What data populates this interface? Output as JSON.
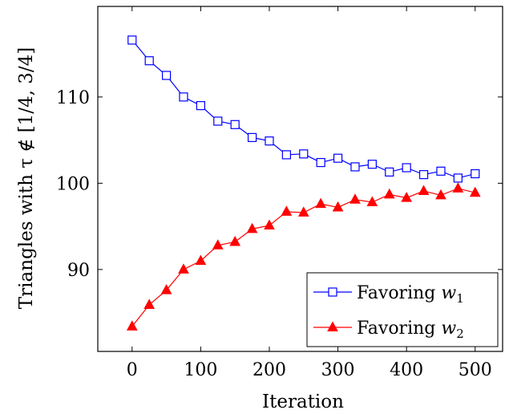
{
  "chart_data": {
    "type": "line",
    "xlabel": "Iteration",
    "ylabel": "Triangles with τ ∉ [1/4, 3/4]",
    "xlim": [
      -50,
      540
    ],
    "ylim": [
      80.5,
      120.5
    ],
    "xticks": [
      0,
      100,
      200,
      300,
      400,
      500
    ],
    "yticks": [
      90,
      100,
      110
    ],
    "grid": false,
    "legend_position": "bottom-right",
    "x": [
      0,
      25,
      50,
      75,
      100,
      125,
      150,
      175,
      200,
      225,
      250,
      275,
      300,
      325,
      350,
      375,
      400,
      425,
      450,
      475,
      500
    ],
    "series": [
      {
        "name": "Favoring w1",
        "legend_main": "Favoring ",
        "legend_var": "w",
        "legend_sub": "1",
        "color": "#0000ff",
        "marker": "square-open",
        "values": [
          116.6,
          114.2,
          112.5,
          110.0,
          109.0,
          107.2,
          106.8,
          105.3,
          104.9,
          103.3,
          103.4,
          102.4,
          102.9,
          101.9,
          102.2,
          101.3,
          101.8,
          101.0,
          101.4,
          100.6,
          101.1
        ]
      },
      {
        "name": "Favoring w2",
        "legend_main": "Favoring ",
        "legend_var": "w",
        "legend_sub": "2",
        "color": "#ff0000",
        "marker": "triangle-filled",
        "values": [
          83.4,
          85.9,
          87.6,
          90.0,
          91.0,
          92.8,
          93.2,
          94.7,
          95.1,
          96.7,
          96.6,
          97.6,
          97.2,
          98.1,
          97.8,
          98.7,
          98.3,
          99.1,
          98.6,
          99.4,
          98.9
        ]
      }
    ]
  }
}
